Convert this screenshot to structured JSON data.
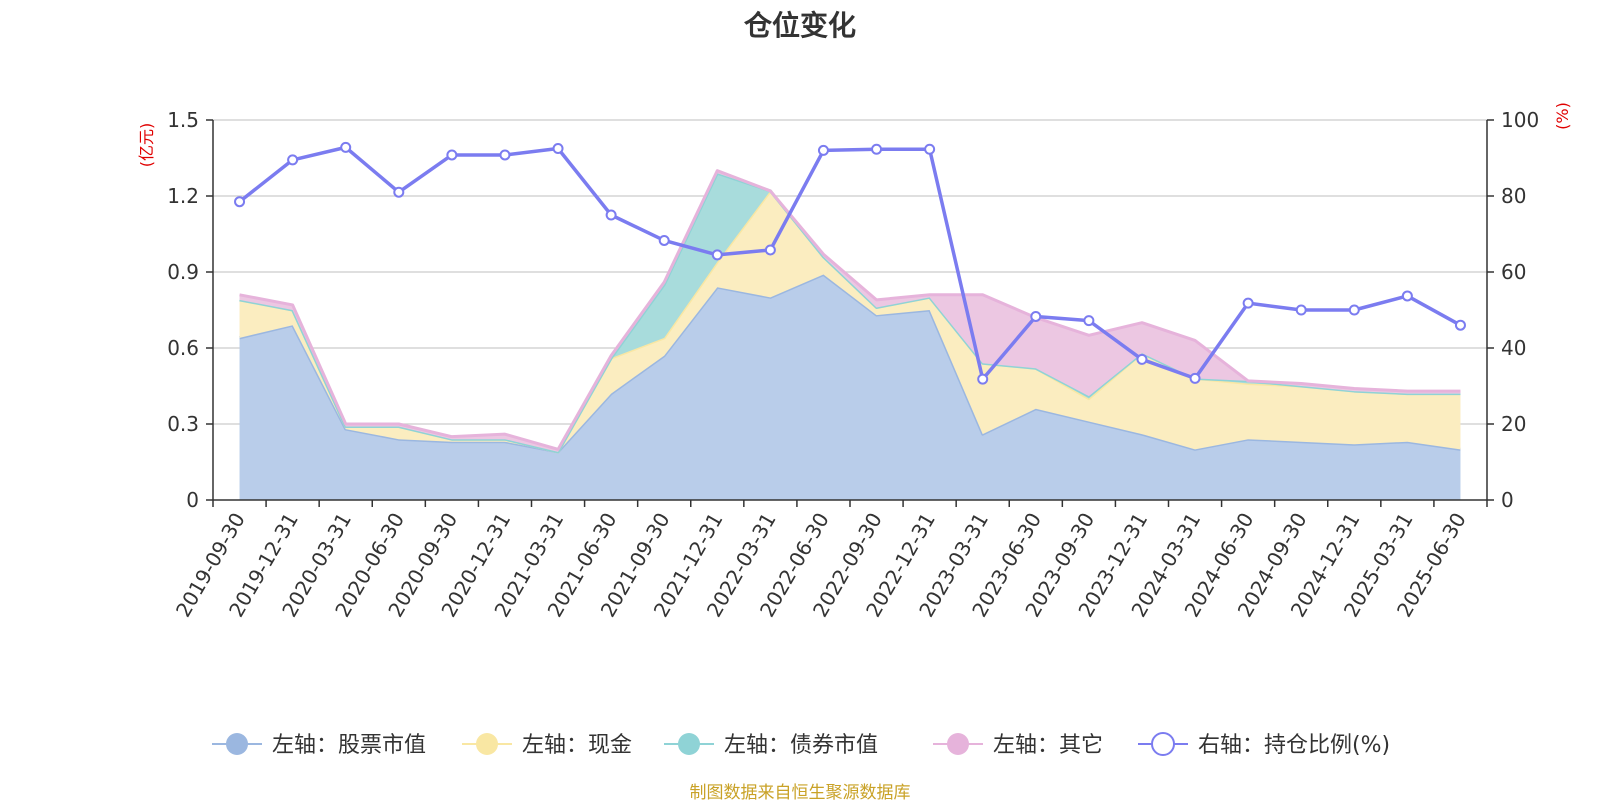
{
  "title": "仓位变化",
  "source_text": "制图数据来自恒生聚源数据库",
  "left_axis_unit": "(亿元)",
  "right_axis_unit": "(%)",
  "colors": {
    "stock": "#9bb7e0",
    "stock_fill": "#b9cdea",
    "cash": "#f9e7a3",
    "cash_fill": "#fbedc0",
    "bond": "#8fd3d6",
    "bond_fill": "#a8dcdc",
    "other": "#e6b3db",
    "other_fill": "#ecc7e2",
    "ratio": "#7b7cf0",
    "grid": "#cccccc",
    "axis": "#333333"
  },
  "legend": [
    {
      "label": "左轴：股票市值",
      "series": "stock",
      "marker": "filled-circle"
    },
    {
      "label": "左轴：现金",
      "series": "cash",
      "marker": "filled-circle"
    },
    {
      "label": "左轴：债券市值",
      "series": "bond",
      "marker": "filled-circle"
    },
    {
      "label": "左轴：其它",
      "series": "other",
      "marker": "filled-circle"
    },
    {
      "label": "右轴：持仓比例(%)",
      "series": "ratio",
      "marker": "hollow-circle"
    }
  ],
  "chart_data": {
    "type": "area",
    "categories": [
      "2019-09-30",
      "2019-12-31",
      "2020-03-31",
      "2020-06-30",
      "2020-09-30",
      "2020-12-31",
      "2021-03-31",
      "2021-06-30",
      "2021-09-30",
      "2021-12-31",
      "2022-03-31",
      "2022-06-30",
      "2022-09-30",
      "2022-12-31",
      "2023-03-31",
      "2023-06-30",
      "2023-09-30",
      "2023-12-31",
      "2024-03-31",
      "2024-06-30",
      "2024-09-30",
      "2024-12-31",
      "2025-03-31",
      "2025-06-30"
    ],
    "left_axis": {
      "min": 0,
      "max": 1.5,
      "ticks": [
        "0",
        "0.3",
        "0.6",
        "0.9",
        "1.2",
        "1.5"
      ]
    },
    "right_axis": {
      "min": 0,
      "max": 100,
      "ticks": [
        "0",
        "20",
        "40",
        "60",
        "80",
        "100"
      ]
    },
    "series": [
      {
        "key": "stock",
        "name": "左轴：股票市值",
        "axis": "left",
        "values": [
          0.64,
          0.69,
          0.28,
          0.24,
          0.23,
          0.23,
          0.19,
          0.42,
          0.57,
          0.84,
          0.8,
          0.89,
          0.73,
          0.75,
          0.26,
          0.36,
          0.31,
          0.26,
          0.2,
          0.24,
          0.23,
          0.22,
          0.23,
          0.2
        ]
      },
      {
        "key": "cash",
        "name": "左轴：现金",
        "axis": "left",
        "values": [
          0.15,
          0.06,
          0.01,
          0.05,
          0.01,
          0.01,
          0.0,
          0.14,
          0.07,
          0.1,
          0.42,
          0.07,
          0.03,
          0.05,
          0.28,
          0.16,
          0.09,
          0.32,
          0.28,
          0.22,
          0.22,
          0.21,
          0.19,
          0.22
        ]
      },
      {
        "key": "bond",
        "name": "左轴：债券市值",
        "axis": "left",
        "values": [
          0,
          0,
          0,
          0,
          0,
          0,
          0,
          0,
          0.21,
          0.35,
          0,
          0,
          0,
          0,
          0,
          0,
          0.01,
          0.0,
          0.0,
          0.01,
          0.0,
          0,
          0,
          0
        ]
      },
      {
        "key": "other",
        "name": "左轴：其它",
        "axis": "left",
        "values": [
          0.02,
          0.02,
          0.01,
          0.01,
          0.01,
          0.02,
          0.01,
          0.01,
          0.01,
          0.01,
          0.0,
          0.01,
          0.03,
          0.01,
          0.27,
          0.2,
          0.24,
          0.12,
          0.15,
          0.0,
          0.01,
          0.01,
          0.01,
          0.01
        ]
      },
      {
        "key": "ratio",
        "name": "右轴：持仓比例(%)",
        "axis": "right",
        "values": [
          78.5,
          89.5,
          92.8,
          81.0,
          90.8,
          90.8,
          92.5,
          75.0,
          68.3,
          64.5,
          65.8,
          92.0,
          92.3,
          92.3,
          31.8,
          48.3,
          47.2,
          37.0,
          32.0,
          51.8,
          50.0,
          50.0,
          53.7,
          46.0
        ]
      }
    ]
  }
}
